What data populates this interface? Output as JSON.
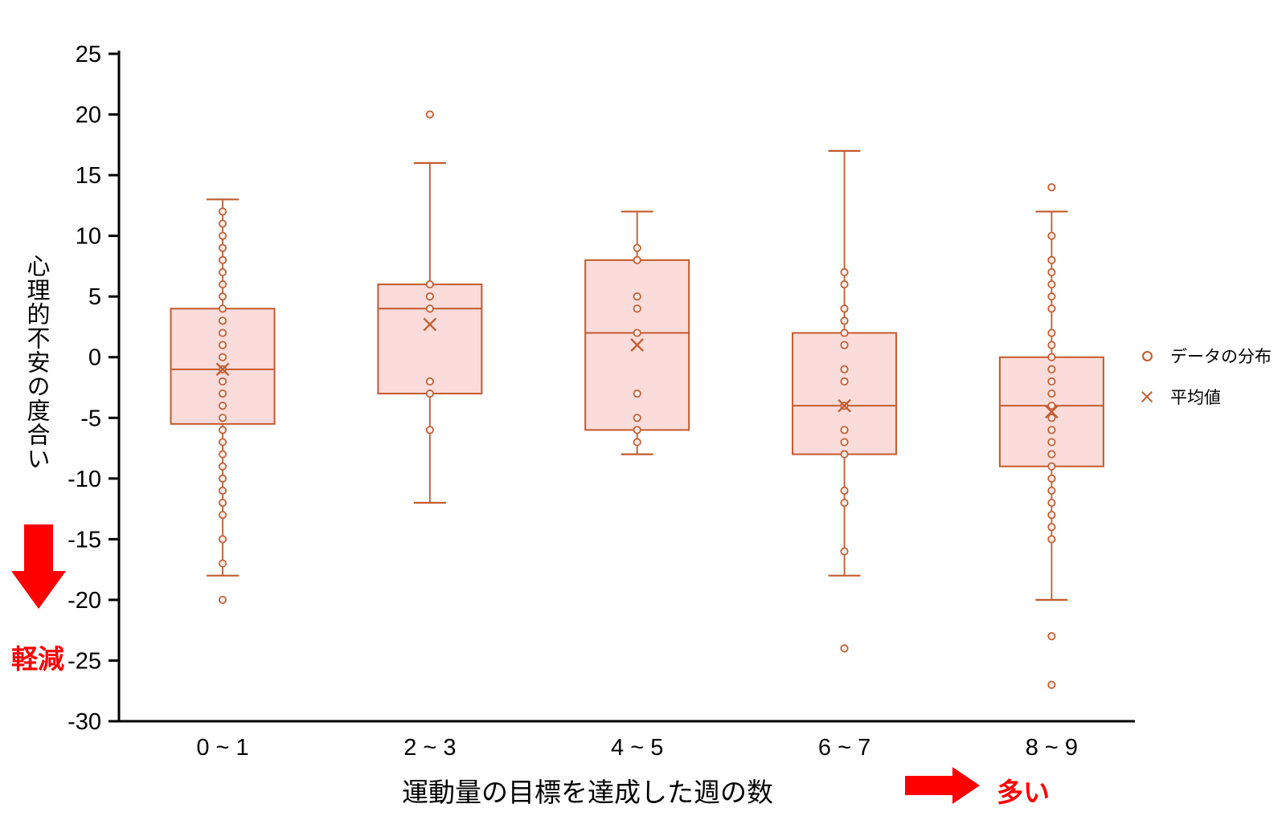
{
  "figure": {
    "background": "#FFFFFF",
    "accent_color": "#C25B2E",
    "box_fill_color": "#FBDCDA",
    "point_fill_color": "#FCEBE6",
    "axis_color": "#000000",
    "annotation_color": "#FF0000"
  },
  "legend": {
    "items": [
      {
        "marker": "circle",
        "label": "データの分布"
      },
      {
        "marker": "x",
        "label": "平均値"
      }
    ]
  },
  "annotations": {
    "y_direction_label": "軽減",
    "x_direction_label": "多い"
  },
  "chart_data": {
    "type": "boxplot",
    "title": "",
    "xlabel": "運動量の目標を達成した週の数",
    "ylabel": "心理的不安の度合い",
    "ylim": [
      -30,
      25
    ],
    "ytick_step": 5,
    "yticks": [
      25,
      20,
      15,
      10,
      5,
      0,
      -5,
      -10,
      -15,
      -20,
      -25,
      -30
    ],
    "grid": false,
    "legend_position": "right",
    "categories": [
      "0 ~ 1",
      "2 ~ 3",
      "4 ~ 5",
      "6 ~ 7",
      "8 ~ 9"
    ],
    "series": [
      {
        "category": "0 ~ 1",
        "whisker_high": 13,
        "q3": 4,
        "median": -1,
        "q1": -5.5,
        "whisker_low": -18,
        "mean": -1,
        "outliers": [
          -20
        ],
        "points": [
          12,
          11,
          10,
          9,
          8,
          7,
          6,
          5,
          4,
          3,
          2,
          1,
          0,
          -1,
          -2,
          -3,
          -4,
          -5,
          -6,
          -7,
          -8,
          -9,
          -10,
          -11,
          -12,
          -13,
          -15,
          -17,
          -20
        ]
      },
      {
        "category": "2 ~ 3",
        "whisker_high": 16,
        "q3": 6,
        "median": 4,
        "q1": -3,
        "whisker_low": -12,
        "mean": 2.7,
        "outliers": [
          20
        ],
        "points": [
          20,
          6,
          5,
          4,
          -2,
          -3,
          -6
        ]
      },
      {
        "category": "4 ~ 5",
        "whisker_high": 12,
        "q3": 8,
        "median": 2,
        "q1": -6,
        "whisker_low": -8,
        "mean": 1,
        "outliers": [],
        "points": [
          9,
          8,
          5,
          4,
          2,
          -3,
          -5,
          -6,
          -7
        ]
      },
      {
        "category": "6 ~ 7",
        "whisker_high": 17,
        "q3": 2,
        "median": -4,
        "q1": -8,
        "whisker_low": -18,
        "mean": -4,
        "outliers": [
          -24
        ],
        "points": [
          7,
          6,
          4,
          3,
          2,
          1,
          -1,
          -2,
          -4,
          -6,
          -7,
          -8,
          -11,
          -12,
          -16,
          -24
        ]
      },
      {
        "category": "8 ~ 9",
        "whisker_high": 12,
        "q3": 0,
        "median": -4,
        "q1": -9,
        "whisker_low": -20,
        "mean": -4.5,
        "outliers": [
          14,
          -23,
          -27
        ],
        "points": [
          14,
          10,
          8,
          7,
          6,
          5,
          4,
          2,
          1,
          0,
          -1,
          -2,
          -3,
          -4,
          -5,
          -6,
          -7,
          -8,
          -9,
          -10,
          -11,
          -12,
          -13,
          -14,
          -15,
          -23,
          -27
        ]
      }
    ]
  }
}
